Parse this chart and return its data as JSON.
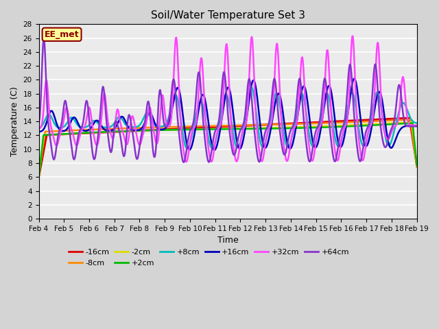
{
  "title": "Soil/Water Temperature Set 3",
  "xlabel": "Time",
  "ylabel": "Temperature (C)",
  "annotation": "EE_met",
  "ylim": [
    0,
    28
  ],
  "yticks": [
    0,
    2,
    4,
    6,
    8,
    10,
    12,
    14,
    16,
    18,
    20,
    22,
    24,
    26,
    28
  ],
  "fig_bg": "#d4d4d4",
  "plot_bg": "#ebebeb",
  "series_order": [
    "-16cm",
    "-8cm",
    "-2cm",
    "+2cm",
    "+8cm",
    "+16cm",
    "+32cm",
    "+64cm"
  ],
  "series_colors": {
    "-16cm": "#dd0000",
    "-8cm": "#ff8800",
    "-2cm": "#dddd00",
    "+2cm": "#00bb00",
    "+8cm": "#00bbbb",
    "+16cm": "#0000bb",
    "+32cm": "#ff44ff",
    "+64cm": "#8833cc"
  },
  "series_lw": {
    "-16cm": 2.2,
    "-8cm": 1.8,
    "-2cm": 1.8,
    "+2cm": 1.8,
    "+8cm": 1.8,
    "+16cm": 1.8,
    "+32cm": 1.8,
    "+64cm": 1.8
  },
  "x_labels": [
    "Feb 4",
    "Feb 5",
    "Feb 6",
    "Feb 7",
    "Feb 8",
    "Feb 9",
    "Feb 10",
    "Feb 11",
    "Feb 12",
    "Feb 13",
    "Feb 14",
    "Feb 15",
    "Feb 16",
    "Feb 17",
    "Feb 18",
    "Feb 19"
  ],
  "n_points": 721
}
